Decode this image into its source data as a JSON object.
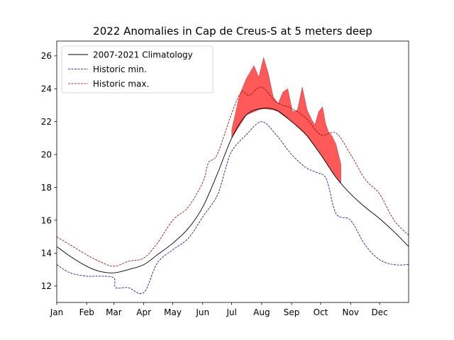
{
  "chart_data": {
    "type": "line",
    "title": "2022 Anomalies in Cap de Creus-S at 5 meters deep",
    "xlabel": "",
    "ylabel": "",
    "xlim": [
      1,
      365
    ],
    "ylim": [
      11.0,
      26.9
    ],
    "grid": false,
    "legend_position": "top-left",
    "x_ticks": [
      {
        "label": "Jan",
        "day": 1
      },
      {
        "label": "Feb",
        "day": 32
      },
      {
        "label": "Mar",
        "day": 60
      },
      {
        "label": "Apr",
        "day": 91
      },
      {
        "label": "May",
        "day": 121
      },
      {
        "label": "Jun",
        "day": 152
      },
      {
        "label": "Jul",
        "day": 182
      },
      {
        "label": "Aug",
        "day": 213
      },
      {
        "label": "Sep",
        "day": 244
      },
      {
        "label": "Oct",
        "day": 274
      },
      {
        "label": "Nov",
        "day": 305
      },
      {
        "label": "Dec",
        "day": 335
      }
    ],
    "y_ticks": [
      12,
      14,
      16,
      18,
      20,
      22,
      24,
      26
    ],
    "series": [
      {
        "name": "2007-2021 Climatology",
        "color": "#000000",
        "style": "solid",
        "day": [
          1,
          15,
          32,
          45,
          60,
          75,
          91,
          105,
          121,
          137,
          152,
          167,
          182,
          197,
          213,
          228,
          244,
          259,
          274,
          290,
          305,
          320,
          335,
          350,
          365
        ],
        "values": [
          14.4,
          13.8,
          13.2,
          12.9,
          12.8,
          13.0,
          13.3,
          13.9,
          14.6,
          15.5,
          16.8,
          18.8,
          21.0,
          22.4,
          22.8,
          22.7,
          22.0,
          21.2,
          20.0,
          18.6,
          17.6,
          16.8,
          16.1,
          15.3,
          14.4
        ]
      },
      {
        "name": "Historic min.",
        "color": "#00008b",
        "style": "dashed",
        "day": [
          1,
          15,
          32,
          45,
          60,
          62,
          75,
          91,
          105,
          121,
          137,
          152,
          167,
          175,
          182,
          197,
          213,
          228,
          244,
          259,
          270,
          280,
          290,
          305,
          320,
          335,
          350,
          365
        ],
        "values": [
          13.3,
          12.8,
          12.6,
          12.6,
          12.5,
          11.9,
          11.9,
          11.6,
          13.4,
          14.2,
          14.9,
          16.2,
          17.5,
          19.0,
          20.2,
          21.2,
          22.0,
          21.2,
          20.0,
          19.2,
          18.9,
          18.5,
          16.4,
          16.0,
          14.5,
          13.6,
          13.3,
          13.3
        ]
      },
      {
        "name": "Historic max.",
        "color": "#8b0000",
        "style": "dashed",
        "day": [
          1,
          15,
          32,
          45,
          60,
          75,
          91,
          105,
          121,
          137,
          152,
          158,
          167,
          182,
          192,
          200,
          213,
          228,
          244,
          259,
          274,
          290,
          305,
          320,
          335,
          350,
          365
        ],
        "values": [
          15.0,
          14.5,
          13.9,
          13.5,
          13.2,
          13.5,
          13.7,
          14.6,
          16.0,
          16.8,
          18.3,
          19.5,
          20.0,
          22.5,
          23.8,
          23.6,
          24.1,
          23.2,
          22.8,
          22.2,
          21.2,
          21.3,
          20.0,
          18.5,
          17.6,
          16.0,
          15.1
        ]
      }
    ],
    "anomaly_2022": {
      "color": "#ff0000",
      "opacity": 0.65,
      "day": [
        182,
        190,
        197,
        205,
        210,
        215,
        220,
        225,
        230,
        235,
        240,
        245,
        250,
        255,
        260,
        265,
        268,
        272,
        276,
        279,
        282,
        286,
        290,
        295
      ],
      "values": [
        21.5,
        23.6,
        24.6,
        25.4,
        24.7,
        25.9,
        24.9,
        23.5,
        23.1,
        23.8,
        24.0,
        22.6,
        22.7,
        24.1,
        22.7,
        22.1,
        21.8,
        22.6,
        22.9,
        21.9,
        21.4,
        21.1,
        20.6,
        19.4
      ]
    }
  }
}
